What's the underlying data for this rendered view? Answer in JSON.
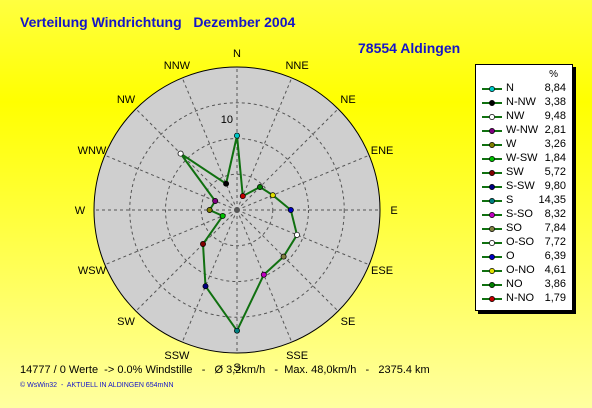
{
  "header": {
    "title": "Verteilung Windrichtung   Dezember 2004",
    "station": "78554 Aldingen"
  },
  "legend": {
    "unit_header": "%"
  },
  "footer": {
    "stats": "14777 / 0 Werte  -> 0.0% Windstille   -   Ø 3,2km/h   -  Max. 48,0km/h   -   2375.4 km",
    "credit": "© WsWin32  -  AKTUELL IN ALDINGEN 654mNN"
  },
  "colors": {
    "title": "#1515c8",
    "line": "#107010",
    "plot_background": "#cfcfcf",
    "grid": "#555555"
  },
  "chart_data": {
    "type": "radar",
    "title": "Verteilung Windrichtung   Dezember 2004",
    "unit": "%",
    "grid": true,
    "rmax": 17,
    "ring_label": "10",
    "ring_label_value": 10,
    "ring_values": [
      4.25,
      8.5,
      12.75
    ],
    "legend_position": "right",
    "axis_labels": [
      "N",
      "NNE",
      "NE",
      "ENE",
      "E",
      "ESE",
      "SE",
      "SSE",
      "S",
      "SSW",
      "SW",
      "WSW",
      "W",
      "WNW",
      "NW",
      "NNW"
    ],
    "directions_clockwise": [
      "N",
      "N-NO",
      "NO",
      "O-NO",
      "O",
      "O-SO",
      "SO",
      "S-SO",
      "S",
      "S-SW",
      "SW",
      "W-SW",
      "W",
      "W-NW",
      "NW",
      "N-NW"
    ],
    "values_clockwise": [
      8.84,
      1.79,
      3.86,
      4.61,
      6.39,
      7.72,
      7.84,
      8.32,
      14.35,
      9.8,
      5.72,
      1.84,
      3.26,
      2.81,
      9.48,
      3.38
    ],
    "marker_colors_clockwise": [
      "#00c8c8",
      "#c00000",
      "#008000",
      "#e0e000",
      "#0000c0",
      "#ffffff",
      "#808040",
      "#c000c0",
      "#008080",
      "#000080",
      "#800000",
      "#00c000",
      "#808000",
      "#800080",
      "#ffffff",
      "#000000"
    ],
    "legend_entries": [
      {
        "label": "N",
        "value": "8,84",
        "color": "#00c8c8"
      },
      {
        "label": "N-NW",
        "value": "3,38",
        "color": "#000000"
      },
      {
        "label": "NW",
        "value": "9,48",
        "color": "#ffffff"
      },
      {
        "label": "W-NW",
        "value": "2,81",
        "color": "#800080"
      },
      {
        "label": "W",
        "value": "3,26",
        "color": "#808000"
      },
      {
        "label": "W-SW",
        "value": "1,84",
        "color": "#00c000"
      },
      {
        "label": "SW",
        "value": "5,72",
        "color": "#800000"
      },
      {
        "label": "S-SW",
        "value": "9,80",
        "color": "#000080"
      },
      {
        "label": "S",
        "value": "14,35",
        "color": "#008080"
      },
      {
        "label": "S-SO",
        "value": "8,32",
        "color": "#c000c0"
      },
      {
        "label": "SO",
        "value": "7,84",
        "color": "#808040"
      },
      {
        "label": "O-SO",
        "value": "7,72",
        "color": "#ffffff"
      },
      {
        "label": "O",
        "value": "6,39",
        "color": "#0000c0"
      },
      {
        "label": "O-NO",
        "value": "4,61",
        "color": "#e0e000"
      },
      {
        "label": "NO",
        "value": "3,86",
        "color": "#008000"
      },
      {
        "label": "N-NO",
        "value": "1,79",
        "color": "#c00000"
      }
    ]
  }
}
